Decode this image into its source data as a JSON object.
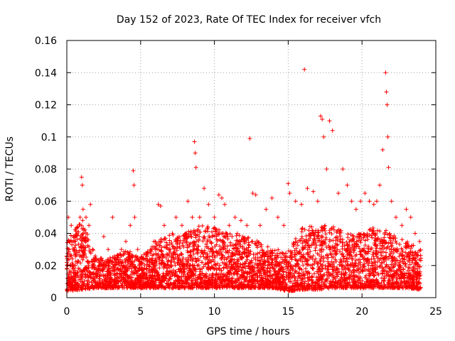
{
  "chart_data": {
    "type": "scatter",
    "title": "Day 152 of 2023, Rate Of TEC Index for receiver vfch",
    "xlabel": "GPS time / hours",
    "ylabel": "ROTI / TECUs",
    "xlim": [
      0,
      25
    ],
    "ylim": [
      0,
      0.16
    ],
    "xticks": [
      0,
      5,
      10,
      15,
      20,
      25
    ],
    "xtick_labels": [
      "0",
      "5",
      "10",
      "15",
      "20",
      "25"
    ],
    "yticks": [
      0,
      0.02,
      0.04,
      0.06,
      0.08,
      0.1,
      0.12,
      0.14,
      0.16
    ],
    "ytick_labels": [
      "0",
      "0.02",
      "0.04",
      "0.06",
      "0.08",
      "0.1",
      "0.12",
      "0.14",
      "0.16"
    ],
    "grid": true,
    "marker": "plus",
    "series_color": "#ff0000",
    "series": [
      {
        "name": "ROTI",
        "x": [
          0.1,
          0.3,
          0.5,
          0.7,
          0.9,
          1.0,
          1.05,
          1.1,
          1.3,
          1.5,
          1.6,
          1.9,
          2.2,
          2.5,
          2.8,
          3.1,
          3.4,
          3.7,
          4.0,
          4.3,
          4.5,
          4.55,
          4.6,
          4.8,
          5.1,
          5.5,
          5.9,
          6.2,
          6.35,
          6.6,
          7.0,
          7.4,
          7.8,
          8.2,
          8.5,
          8.65,
          8.7,
          8.75,
          9.0,
          9.3,
          9.6,
          10.0,
          10.3,
          10.5,
          10.7,
          11.0,
          11.4,
          11.8,
          12.2,
          12.4,
          12.6,
          12.8,
          13.1,
          13.5,
          13.9,
          14.3,
          14.7,
          15.0,
          15.1,
          15.5,
          15.9,
          16.1,
          16.3,
          16.7,
          17.0,
          17.2,
          17.3,
          17.4,
          17.6,
          17.8,
          18.0,
          18.4,
          18.7,
          19.0,
          19.3,
          19.6,
          19.9,
          20.2,
          20.5,
          20.8,
          21.0,
          21.2,
          21.4,
          21.6,
          21.65,
          21.7,
          21.75,
          21.8,
          22.0,
          22.3,
          22.7,
          23.0,
          23.3,
          23.6,
          23.9
        ],
        "y": [
          0.05,
          0.045,
          0.03,
          0.04,
          0.05,
          0.075,
          0.07,
          0.055,
          0.05,
          0.045,
          0.058,
          0.025,
          0.02,
          0.038,
          0.03,
          0.05,
          0.025,
          0.03,
          0.035,
          0.045,
          0.079,
          0.07,
          0.05,
          0.03,
          0.025,
          0.028,
          0.035,
          0.058,
          0.057,
          0.045,
          0.03,
          0.05,
          0.045,
          0.06,
          0.05,
          0.097,
          0.09,
          0.081,
          0.05,
          0.068,
          0.058,
          0.05,
          0.064,
          0.062,
          0.058,
          0.045,
          0.05,
          0.048,
          0.045,
          0.099,
          0.065,
          0.064,
          0.045,
          0.055,
          0.062,
          0.05,
          0.045,
          0.071,
          0.065,
          0.06,
          0.058,
          0.142,
          0.068,
          0.066,
          0.06,
          0.113,
          0.111,
          0.1,
          0.08,
          0.11,
          0.104,
          0.065,
          0.08,
          0.07,
          0.06,
          0.055,
          0.06,
          0.065,
          0.06,
          0.058,
          0.06,
          0.07,
          0.092,
          0.14,
          0.128,
          0.12,
          0.1,
          0.081,
          0.06,
          0.05,
          0.045,
          0.055,
          0.05,
          0.04,
          0.035
        ],
        "baseline": {
          "x": [
            0,
            1,
            2,
            3,
            4,
            5,
            6,
            7,
            8,
            9,
            10,
            11,
            12,
            13,
            14,
            15,
            16,
            17,
            18,
            19,
            20,
            21,
            22,
            23,
            24
          ],
          "low": [
            0.004,
            0.005,
            0.006,
            0.006,
            0.006,
            0.006,
            0.006,
            0.006,
            0.006,
            0.006,
            0.006,
            0.006,
            0.006,
            0.006,
            0.006,
            0.004,
            0.005,
            0.005,
            0.006,
            0.006,
            0.006,
            0.006,
            0.006,
            0.006,
            0.005
          ],
          "high": [
            0.035,
            0.05,
            0.025,
            0.025,
            0.03,
            0.025,
            0.035,
            0.04,
            0.04,
            0.045,
            0.045,
            0.04,
            0.04,
            0.035,
            0.03,
            0.03,
            0.045,
            0.045,
            0.045,
            0.04,
            0.04,
            0.045,
            0.04,
            0.035,
            0.03
          ]
        }
      }
    ]
  }
}
